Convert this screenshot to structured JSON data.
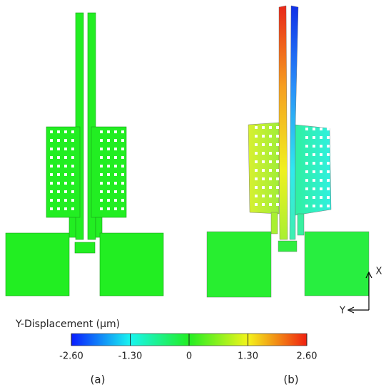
{
  "panels": [
    {
      "label": "(a)"
    },
    {
      "label": "(b)"
    }
  ],
  "colorbar": {
    "title": "Y-Displacement (μm)",
    "range": [
      -2.6,
      2.6
    ],
    "ticks": [
      {
        "value": -2.6,
        "label": "-2.60"
      },
      {
        "value": -1.3,
        "label": "-1.30"
      },
      0,
      {
        "value": 1.3,
        "label": "1.30"
      },
      {
        "value": 2.6,
        "label": "2.60"
      }
    ]
  },
  "axes": {
    "x": "X",
    "y": "Y"
  }
}
